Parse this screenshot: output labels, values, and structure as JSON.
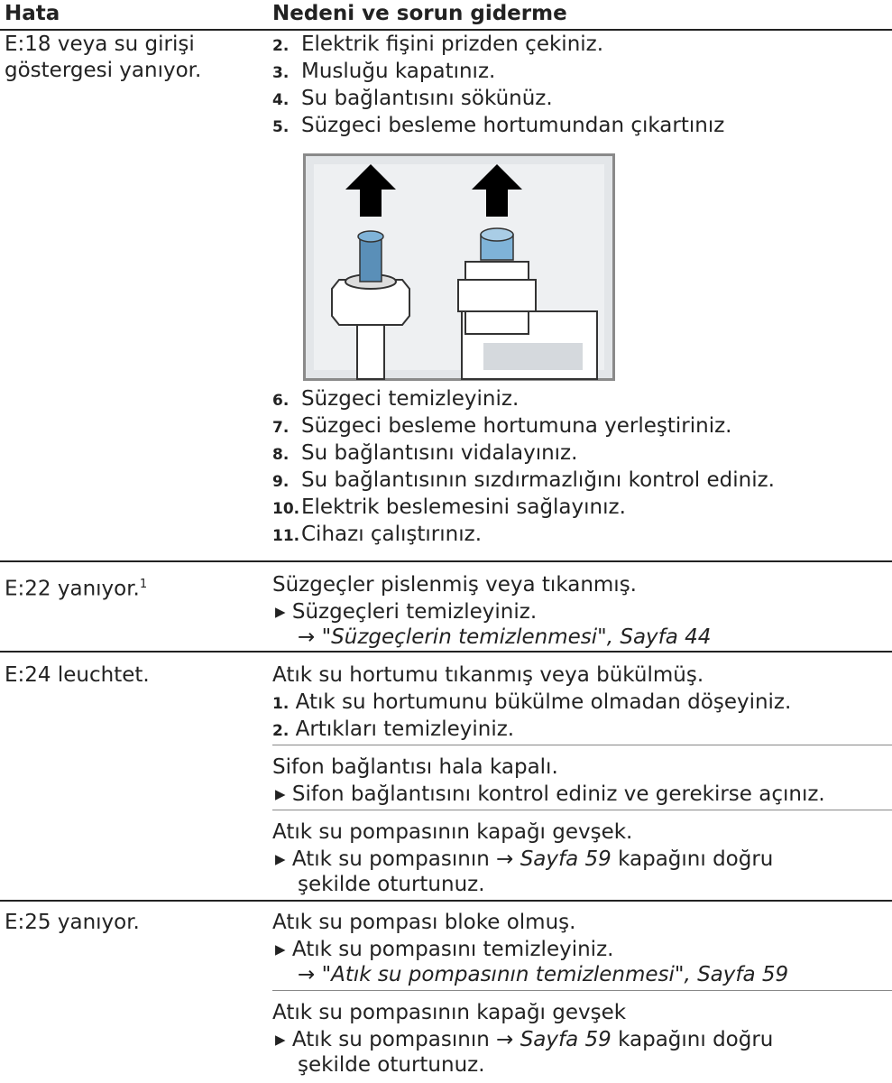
{
  "header": {
    "col1": "Hata",
    "col2": "Nedeni ve sorun giderme"
  },
  "rows": [
    {
      "error": [
        "E:18 veya su girişi",
        "göstergesi yanıyor."
      ],
      "steps_a": [
        {
          "num": "2.",
          "text": "Elektrik fişini prizden çekiniz."
        },
        {
          "num": "3.",
          "text": "Musluğu kapatınız."
        },
        {
          "num": "4.",
          "text": "Su bağlantısını sökünüz."
        },
        {
          "num": "5.",
          "text": "Süzgeci besleme hortumundan çıkartınız"
        }
      ],
      "steps_b": [
        {
          "num": "6.",
          "text": "Süzgeci temizleyiniz."
        },
        {
          "num": "7.",
          "text": "Süzgeci besleme hortumuna yerleştiriniz."
        },
        {
          "num": "8.",
          "text": "Su bağlantısını vidalayınız."
        },
        {
          "num": "9.",
          "text": "Su bağlantısının sızdırmazlığını kontrol ediniz."
        },
        {
          "num": "10.",
          "text": "Elektrik beslemesini sağlayınız."
        },
        {
          "num": "11.",
          "text": "Cihazı çalıştırınız."
        }
      ]
    },
    {
      "error": "E:22 yanıyor.",
      "footnote": "1",
      "cause": "Süzgeçler pislenmiş veya tıkanmış.",
      "action": "Süzgeçleri temizleyiniz.",
      "reference": "→ \"Süzgeçlerin temizlenmesi\", Sayfa 44"
    },
    {
      "error": "E:24 leuchtet.",
      "causes": [
        {
          "cause": "Atık su hortumu tıkanmış veya bükülmüş.",
          "steps": [
            {
              "num": "1.",
              "text": "Atık su hortumunu bükülme olmadan döşeyiniz."
            },
            {
              "num": "2.",
              "text": "Artıkları temizleyiniz."
            }
          ]
        },
        {
          "cause": "Sifon bağlantısı hala kapalı.",
          "action": "Sifon bağlantısını kontrol ediniz ve gerekirse açınız."
        },
        {
          "cause": "Atık su pompasının kapağı gevşek.",
          "action_before": "Atık su pompasının",
          "action_link": "→ Sayfa 59",
          "action_after": "kapağını doğru",
          "action_cont": "şekilde oturtunuz."
        }
      ]
    },
    {
      "error": "E:25 yanıyor.",
      "causes": [
        {
          "cause": "Atık su pompası bloke olmuş.",
          "action": "Atık su pompasını temizleyiniz.",
          "reference": "→ \"Atık su pompasının temizlenmesi\", Sayfa 59"
        },
        {
          "cause": "Atık su pompasının kapağı gevşek",
          "action_before": "Atık su pompasının",
          "action_link": "→ Sayfa 59",
          "action_after": "kapağını doğru",
          "action_cont": "şekilde oturtunuz."
        }
      ]
    }
  ]
}
